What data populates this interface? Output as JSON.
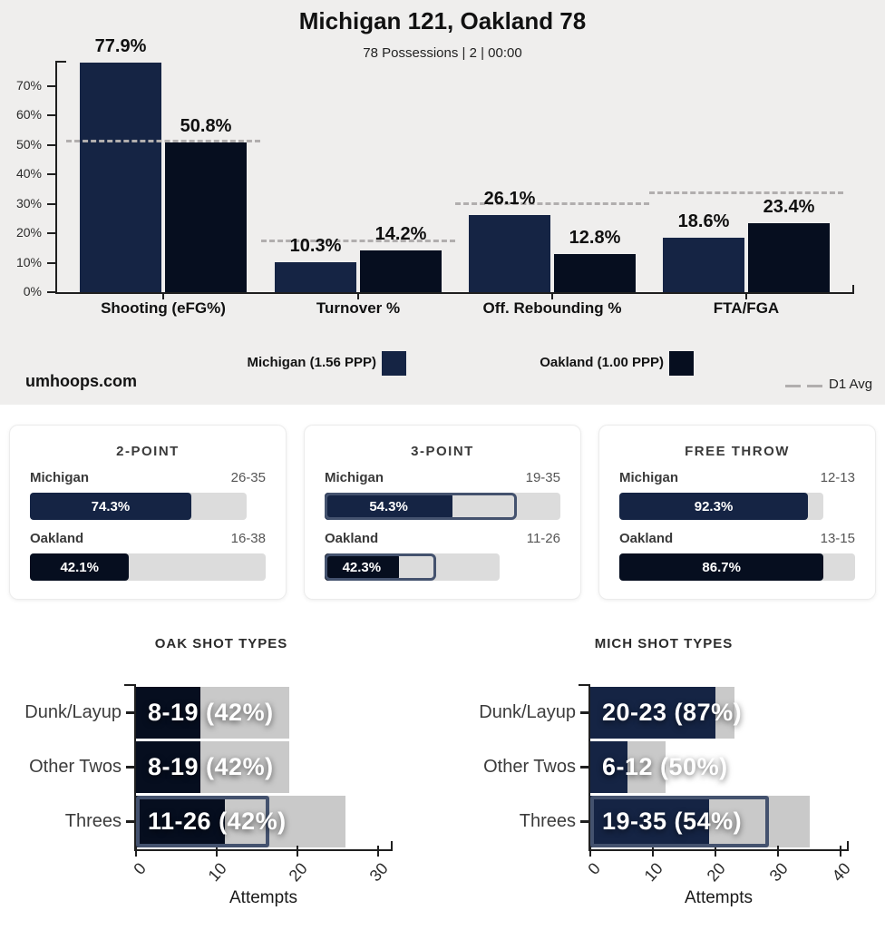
{
  "header": {
    "title": "Michigan 121, Oakland 78",
    "subtitle": "78 Possessions | 2 | 00:00"
  },
  "colors": {
    "michigan": "#152444",
    "oakland": "#060e1f",
    "gray_card": "#dcdcdc",
    "gray_plot": "#c9c9c9",
    "d1_line": "#b1aeae",
    "outline": "#44526e",
    "axis": "#1f1f1f"
  },
  "footer_legend": {
    "d1_label": "D1 Avg",
    "watermark": "umhoops.com"
  },
  "chart_data": [
    {
      "type": "bar",
      "title": "Four Factors",
      "ylim": [
        0,
        80
      ],
      "y_ticks": [
        "0%",
        "10%",
        "20%",
        "30%",
        "40%",
        "50%",
        "60%",
        "70%"
      ],
      "categories": [
        "Shooting (eFG%)",
        "Turnover %",
        "Off. Rebounding %",
        "FTA/FGA"
      ],
      "series": [
        {
          "name": "Michigan (1.56 PPP)",
          "values": [
            77.9,
            10.3,
            26.1,
            18.6
          ],
          "labels": [
            "77.9%",
            "10.3%",
            "26.1%",
            "18.6%"
          ]
        },
        {
          "name": "Oakland (1.00 PPP)",
          "values": [
            50.8,
            14.2,
            12.8,
            23.4
          ],
          "labels": [
            "50.8%",
            "14.2%",
            "12.8%",
            "23.4%"
          ]
        }
      ],
      "d1_avg": {
        "label": "D1 Avg",
        "values": [
          51.0,
          17.3,
          29.8,
          33.7
        ]
      },
      "legend_position": "bottom",
      "grid": false
    },
    {
      "type": "bar",
      "title": "Shooting Splits",
      "cards": [
        {
          "title": "2-POINT",
          "rows": [
            {
              "team": "Michigan",
              "record": "26-35",
              "made": 26,
              "att": 35,
              "pct_label": "74.3%"
            },
            {
              "team": "Oakland",
              "record": "16-38",
              "made": 16,
              "att": 38,
              "pct_label": "42.1%"
            }
          ]
        },
        {
          "title": "3-POINT",
          "rows": [
            {
              "team": "Michigan",
              "record": "19-35",
              "made": 19,
              "att": 35,
              "pct_label": "54.3%",
              "effective_pct": 81.4
            },
            {
              "team": "Oakland",
              "record": "11-26",
              "made": 11,
              "att": 26,
              "pct_label": "42.3%",
              "effective_pct": 63.5
            }
          ]
        },
        {
          "title": "FREE THROW",
          "rows": [
            {
              "team": "Michigan",
              "record": "12-13",
              "made": 12,
              "att": 13,
              "pct_label": "92.3%"
            },
            {
              "team": "Oakland",
              "record": "13-15",
              "made": 13,
              "att": 15,
              "pct_label": "86.7%"
            }
          ]
        }
      ]
    },
    {
      "type": "bar",
      "title": "Shot Types",
      "charts": [
        {
          "title": "OAK SHOT TYPES",
          "team": "oakland",
          "xlabel": "Attempts",
          "x_ticks": [
            0,
            10,
            20,
            30
          ],
          "rows": [
            {
              "label": "Dunk/Layup",
              "text": "8-19 (42%)",
              "made": 8,
              "att": 19
            },
            {
              "label": "Other Twos",
              "text": "8-19 (42%)",
              "made": 8,
              "att": 19
            },
            {
              "label": "Threes",
              "text": "11-26 (42%)",
              "made": 11,
              "att": 26,
              "effective": 16.5
            }
          ]
        },
        {
          "title": "MICH SHOT TYPES",
          "team": "michigan",
          "xlabel": "Attempts",
          "x_ticks": [
            0,
            10,
            20,
            30,
            40
          ],
          "rows": [
            {
              "label": "Dunk/Layup",
              "text": "20-23 (87%)",
              "made": 20,
              "att": 23
            },
            {
              "label": "Other Twos",
              "text": "6-12 (50%)",
              "made": 6,
              "att": 12
            },
            {
              "label": "Threes",
              "text": "19-35 (54%)",
              "made": 19,
              "att": 35,
              "effective": 28.5
            }
          ]
        }
      ]
    }
  ]
}
